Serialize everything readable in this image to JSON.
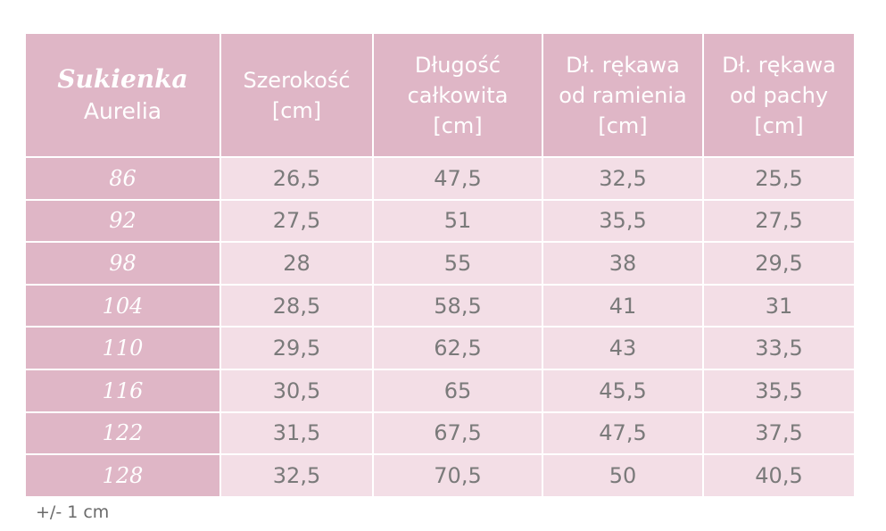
{
  "header": {
    "title": "Sukienka",
    "subtitle": "Aurelia",
    "columns": [
      [
        "Szerokość",
        "[cm]"
      ],
      [
        "Długość",
        "całkowita",
        "[cm]"
      ],
      [
        "Dł. rękawa",
        "od ramienia",
        "[cm]"
      ],
      [
        "Dł. rękawa",
        "od pachy",
        "[cm]"
      ]
    ]
  },
  "table": {
    "rows": [
      [
        "86",
        "26,5",
        "47,5",
        "32,5",
        "25,5"
      ],
      [
        "92",
        "27,5",
        "51",
        "35,5",
        "27,5"
      ],
      [
        "98",
        "28",
        "55",
        "38",
        "29,5"
      ],
      [
        "104",
        "28,5",
        "58,5",
        "41",
        "31"
      ],
      [
        "110",
        "29,5",
        "62,5",
        "43",
        "33,5"
      ],
      [
        "116",
        "30,5",
        "65",
        "45,5",
        "35,5"
      ],
      [
        "122",
        "31,5",
        "67,5",
        "47,5",
        "37,5"
      ],
      [
        "128",
        "32,5",
        "70,5",
        "50",
        "40,5"
      ]
    ]
  },
  "note": "+/- 1 cm"
}
